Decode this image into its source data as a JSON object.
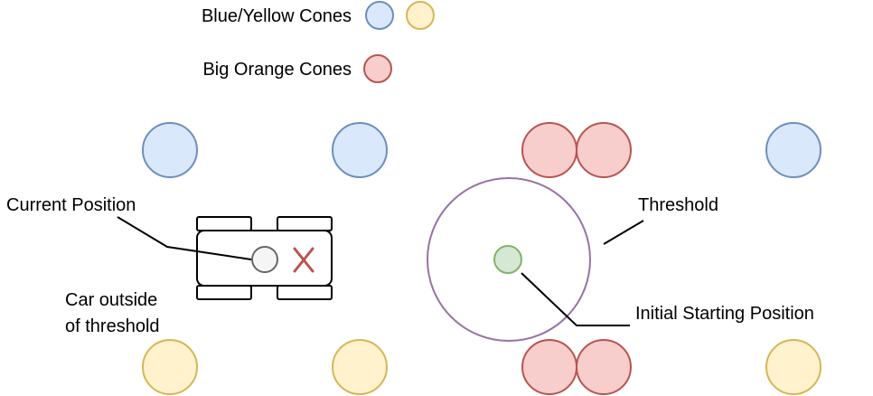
{
  "legend": {
    "blue_yellow_label": "Blue/Yellow Cones",
    "orange_label": "Big Orange Cones"
  },
  "labels": {
    "current_position": "Current Position",
    "car_outside_line1": "Car outside",
    "car_outside_line2": "of threshold",
    "threshold": "Threshold",
    "initial_starting_position": "Initial Starting Position"
  },
  "colors": {
    "blue_fill": "#dae8fc",
    "blue_stroke": "#6c8ebf",
    "yellow_fill": "#fff2cc",
    "yellow_stroke": "#d6b656",
    "red_fill": "#f8cecc",
    "red_stroke": "#b85450",
    "green_fill": "#d5e8d4",
    "green_stroke": "#82b366",
    "threshold_stroke": "#9673a6",
    "current_fill": "#f5f5f5",
    "current_stroke": "#666666",
    "x_mark": "#b85450"
  }
}
